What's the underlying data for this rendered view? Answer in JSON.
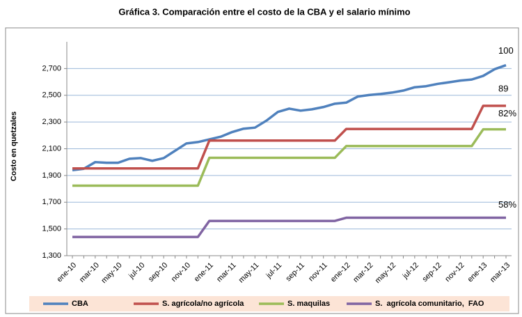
{
  "chart_data": {
    "type": "line",
    "title": "Gráfica 3.  Comparación entre el costo de la CBA y el salario mínimo",
    "y_label": "Costo en quetzales",
    "categories": [
      "ene-10",
      null,
      "mar-10",
      null,
      "may-10",
      null,
      "jul-10",
      null,
      "sep-10",
      null,
      "nov-10",
      null,
      "ene-11",
      null,
      "mar-11",
      null,
      "may-11",
      null,
      "jul-11",
      null,
      "sep-11",
      null,
      "nov-11",
      null,
      "ene-12",
      null,
      "mar-12",
      null,
      "may-12",
      null,
      "jul-12",
      null,
      "sep-12",
      null,
      "nov-12",
      null,
      "ene-13",
      null,
      "mar-13"
    ],
    "series": [
      {
        "name": "CBA",
        "color": "#4f81bd",
        "values": [
          1940,
          1950,
          2000,
          1995,
          1995,
          2025,
          2030,
          2010,
          2030,
          2085,
          2140,
          2150,
          2170,
          2190,
          2225,
          2250,
          2258,
          2310,
          2375,
          2400,
          2385,
          2395,
          2412,
          2437,
          2445,
          2490,
          2502,
          2510,
          2520,
          2535,
          2560,
          2568,
          2585,
          2597,
          2610,
          2618,
          2645,
          2695,
          2725
        ]
      },
      {
        "name": "S. agrícola/no agrícola",
        "color": "#c0504d",
        "values": [
          1953,
          1953,
          1953,
          1953,
          1953,
          1953,
          1953,
          1953,
          1953,
          1953,
          1953,
          1953,
          2161,
          2161,
          2161,
          2161,
          2161,
          2161,
          2161,
          2161,
          2161,
          2161,
          2161,
          2161,
          2248,
          2248,
          2248,
          2248,
          2248,
          2248,
          2248,
          2248,
          2248,
          2248,
          2248,
          2248,
          2421,
          2421,
          2421
        ]
      },
      {
        "name": "S. maquilas",
        "color": "#9bbb59",
        "values": [
          1824,
          1824,
          1824,
          1824,
          1824,
          1824,
          1824,
          1824,
          1824,
          1824,
          1824,
          1824,
          2032,
          2032,
          2032,
          2032,
          2032,
          2032,
          2032,
          2032,
          2032,
          2032,
          2032,
          2032,
          2120,
          2120,
          2120,
          2120,
          2120,
          2120,
          2120,
          2120,
          2120,
          2120,
          2120,
          2120,
          2245,
          2245,
          2245
        ]
      },
      {
        "name": "S.  agrícola comunitario,  FAO",
        "color": "#8064a2",
        "values": [
          1440,
          1440,
          1440,
          1440,
          1440,
          1440,
          1440,
          1440,
          1440,
          1440,
          1440,
          1440,
          1560,
          1560,
          1560,
          1560,
          1560,
          1560,
          1560,
          1560,
          1560,
          1560,
          1560,
          1560,
          1584,
          1584,
          1584,
          1584,
          1584,
          1584,
          1584,
          1584,
          1584,
          1584,
          1584,
          1584,
          1584,
          1584,
          1584
        ]
      }
    ],
    "annotations": [
      "100",
      "89",
      "82%",
      "58%"
    ],
    "ylim": [
      1300,
      2900
    ],
    "yticks": [
      {
        "value": 1300,
        "label": "1,300"
      },
      {
        "value": 1500,
        "label": "1,500"
      },
      {
        "value": 1700,
        "label": "1,700"
      },
      {
        "value": 1900,
        "label": "1,900"
      },
      {
        "value": 2100,
        "label": "2,100"
      },
      {
        "value": 2300,
        "label": "2,300"
      },
      {
        "value": 2500,
        "label": "2,500"
      },
      {
        "value": 2700,
        "label": "2,700"
      }
    ],
    "grid": true
  }
}
